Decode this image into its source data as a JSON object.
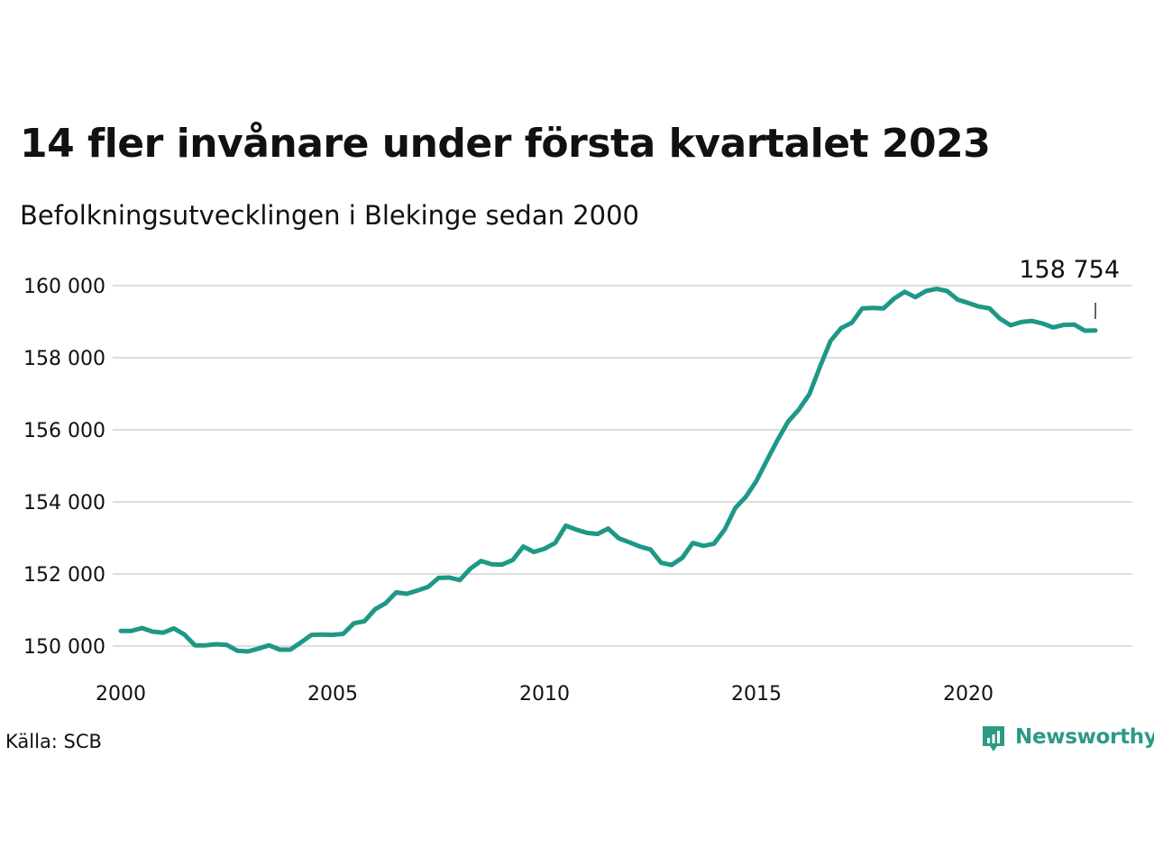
{
  "title": "14 fler invånare under första kvartalet 2023",
  "subtitle": "Befolkningsutvecklingen i Blekinge sedan 2000",
  "source": "Källa: SCB",
  "brand": "Newsworthy",
  "colors": {
    "line": "#1e9886",
    "grid": "#dddddd",
    "brand": "#2c9a85",
    "text": "#111111"
  },
  "chart_data": {
    "type": "line",
    "x_ticks": [
      "2000",
      "2005",
      "2010",
      "2015",
      "2020"
    ],
    "y_ticks": [
      "150 000",
      "152 000",
      "154 000",
      "156 000",
      "158 000",
      "160 000"
    ],
    "ylim": [
      149400,
      160500
    ],
    "xlim": [
      2000,
      2024.25
    ],
    "grid": true,
    "last_value_label": "158 754",
    "series": [
      {
        "x": [
          2000.0,
          2000.25,
          2000.5,
          2000.75,
          2001.0,
          2001.25,
          2001.5,
          2001.75,
          2002.0,
          2002.25,
          2002.5,
          2002.75,
          2003.0,
          2003.25,
          2003.5,
          2003.75,
          2004.0,
          2004.25,
          2004.5,
          2004.75,
          2005.0,
          2005.25,
          2005.5,
          2005.75,
          2006.0,
          2006.25,
          2006.5,
          2006.75,
          2007.0,
          2007.25,
          2007.5,
          2007.75,
          2008.0,
          2008.25,
          2008.5,
          2008.75,
          2009.0,
          2009.25,
          2009.5,
          2009.75,
          2010.0,
          2010.25,
          2010.5,
          2010.75,
          2011.0,
          2011.25,
          2011.5,
          2011.75,
          2012.0,
          2012.25,
          2012.5,
          2012.75,
          2013.0,
          2013.25,
          2013.5,
          2013.75,
          2014.0,
          2014.25,
          2014.5,
          2014.75,
          2015.0,
          2015.25,
          2015.5,
          2015.75,
          2016.0,
          2016.25,
          2016.5,
          2016.75,
          2017.0,
          2017.25,
          2017.5,
          2017.75,
          2018.0,
          2018.25,
          2018.5,
          2018.75,
          2019.0,
          2019.25,
          2019.5,
          2019.75,
          2020.0,
          2020.25,
          2020.5,
          2020.75,
          2021.0,
          2021.25,
          2021.5,
          2021.75,
          2022.0,
          2022.25,
          2022.5,
          2022.75,
          2023.0
        ],
        "values": [
          150420,
          150420,
          150500,
          150400,
          150370,
          150490,
          150320,
          150020,
          150020,
          150050,
          150030,
          149870,
          149850,
          149930,
          150020,
          149900,
          149900,
          150100,
          150310,
          150320,
          150310,
          150340,
          150630,
          150690,
          151020,
          151190,
          151490,
          151450,
          151540,
          151640,
          151890,
          151900,
          151830,
          152150,
          152360,
          152270,
          152260,
          152390,
          152760,
          152610,
          152700,
          152860,
          153340,
          153230,
          153140,
          153110,
          153260,
          152990,
          152880,
          152760,
          152680,
          152310,
          152250,
          152450,
          152860,
          152780,
          152840,
          153230,
          153830,
          154140,
          154580,
          155160,
          155720,
          156230,
          156560,
          156990,
          157750,
          158470,
          158820,
          158970,
          159370,
          159380,
          159370,
          159640,
          159830,
          159680,
          159850,
          159910,
          159850,
          159610,
          159520,
          159420,
          159370,
          159080,
          158900,
          158990,
          159020,
          158950,
          158840,
          158910,
          158920,
          158750,
          158754
        ]
      }
    ]
  }
}
